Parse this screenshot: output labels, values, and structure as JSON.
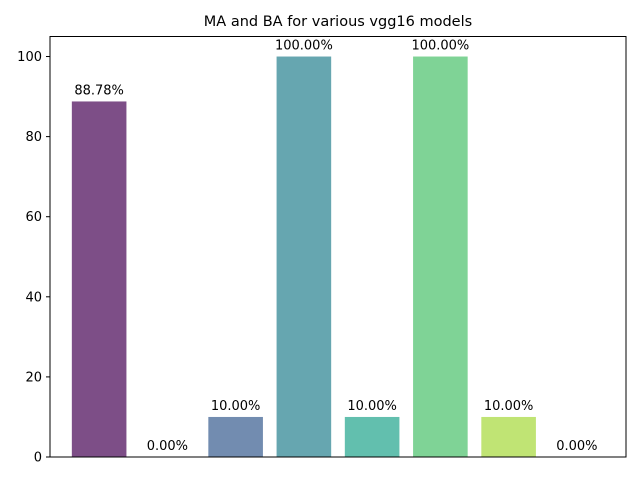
{
  "chart_data": {
    "type": "bar",
    "title": "MA and BA for various vgg16 models",
    "xlabel": "",
    "ylabel": "",
    "ylim": [
      0,
      105
    ],
    "yticks": [
      0,
      20,
      40,
      60,
      80,
      100
    ],
    "grid": false,
    "legend": "none",
    "values": [
      88.78,
      0.0,
      10.0,
      100.0,
      10.0,
      100.0,
      10.0,
      0.0
    ],
    "labels": [
      "88.78%",
      "0.00%",
      "10.00%",
      "100.00%",
      "10.00%",
      "100.00%",
      "10.00%",
      "0.00%"
    ],
    "colors": [
      "#7d4e87",
      "#7d4e87",
      "#728cb0",
      "#66a6b0",
      "#62bfae",
      "#7fd396",
      "#c0e474",
      "#c0e474"
    ]
  }
}
